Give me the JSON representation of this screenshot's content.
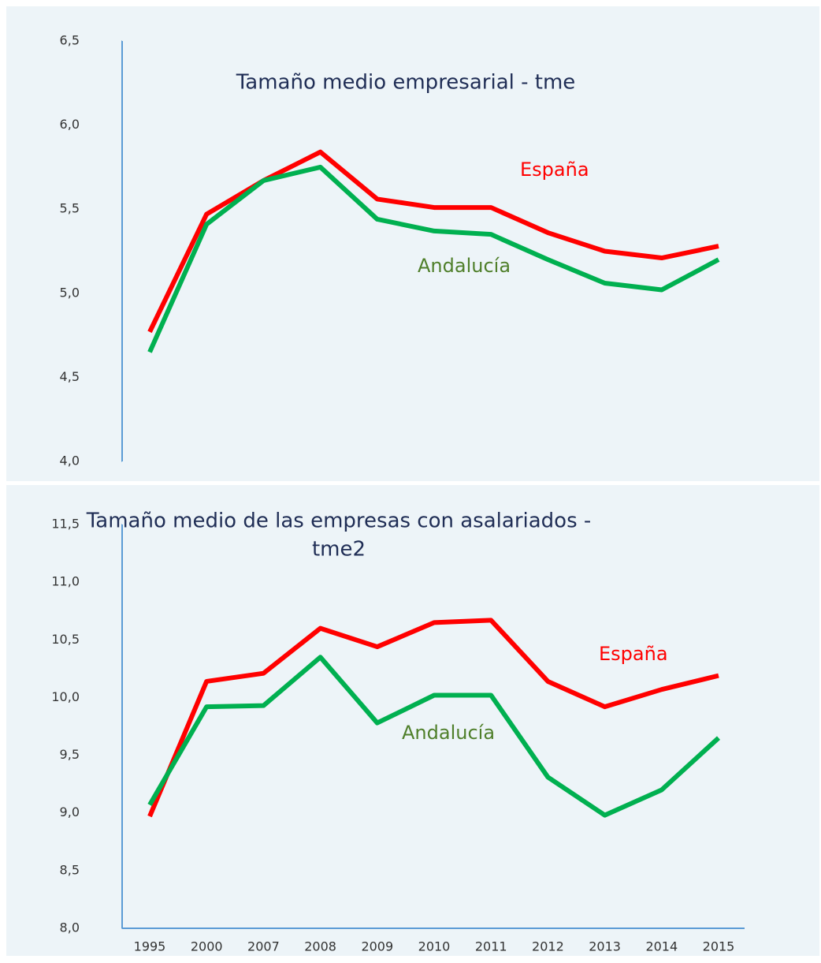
{
  "chart_data": [
    {
      "type": "line",
      "title": [
        "Tamaño medio empresarial - tme"
      ],
      "ylim": [
        4.0,
        6.5
      ],
      "yticks": [
        {
          "value": 4.0,
          "label": "4,0"
        },
        {
          "value": 4.5,
          "label": "4,5"
        },
        {
          "value": 5.0,
          "label": "5,0"
        },
        {
          "value": 5.5,
          "label": "5,5"
        },
        {
          "value": 6.0,
          "label": "6,0"
        },
        {
          "value": 6.5,
          "label": "6,5"
        }
      ],
      "series": [
        {
          "name": "España",
          "color": "#ff0000",
          "values": [
            4.77,
            5.47,
            5.67,
            5.84,
            5.56,
            5.51,
            5.51,
            5.36,
            5.25,
            5.21,
            5.28
          ]
        },
        {
          "name": "Andalucía",
          "color": "#00b050",
          "values": [
            4.65,
            5.41,
            5.67,
            5.75,
            5.44,
            5.37,
            5.35,
            5.2,
            5.06,
            5.02,
            5.2
          ]
        }
      ]
    },
    {
      "type": "line",
      "title": [
        "Tamaño medio de las empresas con asalariados -",
        "tme2"
      ],
      "categories": [
        "1995",
        "2000",
        "2007",
        "2008",
        "2009",
        "2010",
        "2011",
        "2012",
        "2013",
        "2014",
        "2015"
      ],
      "ylim": [
        8.0,
        11.5
      ],
      "yticks": [
        {
          "value": 8.0,
          "label": "8,0"
        },
        {
          "value": 8.5,
          "label": "8,5"
        },
        {
          "value": 9.0,
          "label": "9,0"
        },
        {
          "value": 9.5,
          "label": "9,5"
        },
        {
          "value": 10.0,
          "label": "10,0"
        },
        {
          "value": 10.5,
          "label": "10,5"
        },
        {
          "value": 11.0,
          "label": "11,0"
        },
        {
          "value": 11.5,
          "label": "11,5"
        }
      ],
      "series": [
        {
          "name": "España",
          "color": "#ff0000",
          "values": [
            8.97,
            10.14,
            10.21,
            10.6,
            10.44,
            10.65,
            10.67,
            10.14,
            9.92,
            10.07,
            10.19
          ]
        },
        {
          "name": "Andalucía",
          "color": "#00b050",
          "values": [
            9.07,
            9.92,
            9.93,
            10.35,
            9.78,
            10.02,
            10.02,
            9.31,
            8.98,
            9.2,
            9.65
          ]
        }
      ]
    }
  ]
}
